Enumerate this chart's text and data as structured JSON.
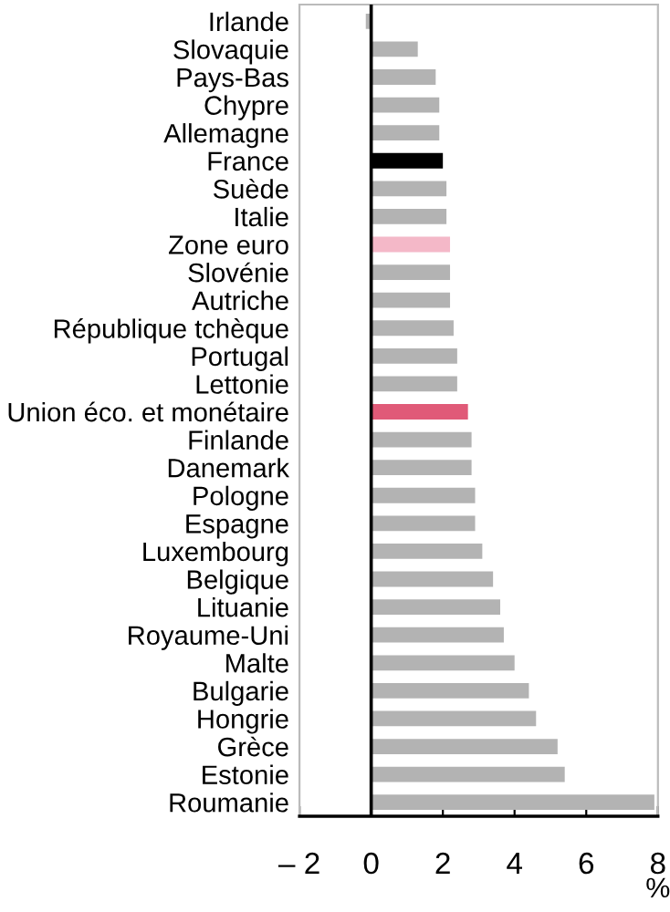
{
  "chart_data": {
    "type": "bar",
    "orientation": "horizontal",
    "xlabel": "%",
    "categories": [
      "Irlande",
      "Slovaquie",
      "Pays-Bas",
      "Chypre",
      "Allemagne",
      "France",
      "Suède",
      "Italie",
      "Zone euro",
      "Slovénie",
      "Autriche",
      "République tchèque",
      "Portugal",
      "Lettonie",
      "Union éco. et monétaire",
      "Finlande",
      "Danemark",
      "Pologne",
      "Espagne",
      "Luxembourg",
      "Belgique",
      "Lituanie",
      "Royaume-Uni",
      "Malte",
      "Bulgarie",
      "Hongrie",
      "Grèce",
      "Estonie",
      "Roumanie"
    ],
    "values": [
      -0.15,
      1.3,
      1.8,
      1.9,
      1.9,
      2.0,
      2.1,
      2.1,
      2.2,
      2.2,
      2.2,
      2.3,
      2.4,
      2.4,
      2.7,
      2.8,
      2.8,
      2.9,
      2.9,
      3.1,
      3.4,
      3.6,
      3.7,
      4.0,
      4.4,
      4.6,
      5.2,
      5.4,
      7.9
    ],
    "colors": [
      "#b3b3b3",
      "#b3b3b3",
      "#b3b3b3",
      "#b3b3b3",
      "#b3b3b3",
      "#000000",
      "#b3b3b3",
      "#b3b3b3",
      "#f4b8c8",
      "#b3b3b3",
      "#b3b3b3",
      "#b3b3b3",
      "#b3b3b3",
      "#b3b3b3",
      "#e05a78",
      "#b3b3b3",
      "#b3b3b3",
      "#b3b3b3",
      "#b3b3b3",
      "#b3b3b3",
      "#b3b3b3",
      "#b3b3b3",
      "#b3b3b3",
      "#b3b3b3",
      "#b3b3b3",
      "#b3b3b3",
      "#b3b3b3",
      "#b3b3b3",
      "#b3b3b3"
    ],
    "xlim": [
      -2,
      8
    ],
    "xticks": [
      {
        "value": -2,
        "label": "– 2"
      },
      0,
      2,
      4,
      6,
      8
    ],
    "ref_lines": [
      {
        "axis": "x",
        "value": 0,
        "label": null,
        "color": "#000000"
      }
    ],
    "grid": false,
    "legend": false
  }
}
